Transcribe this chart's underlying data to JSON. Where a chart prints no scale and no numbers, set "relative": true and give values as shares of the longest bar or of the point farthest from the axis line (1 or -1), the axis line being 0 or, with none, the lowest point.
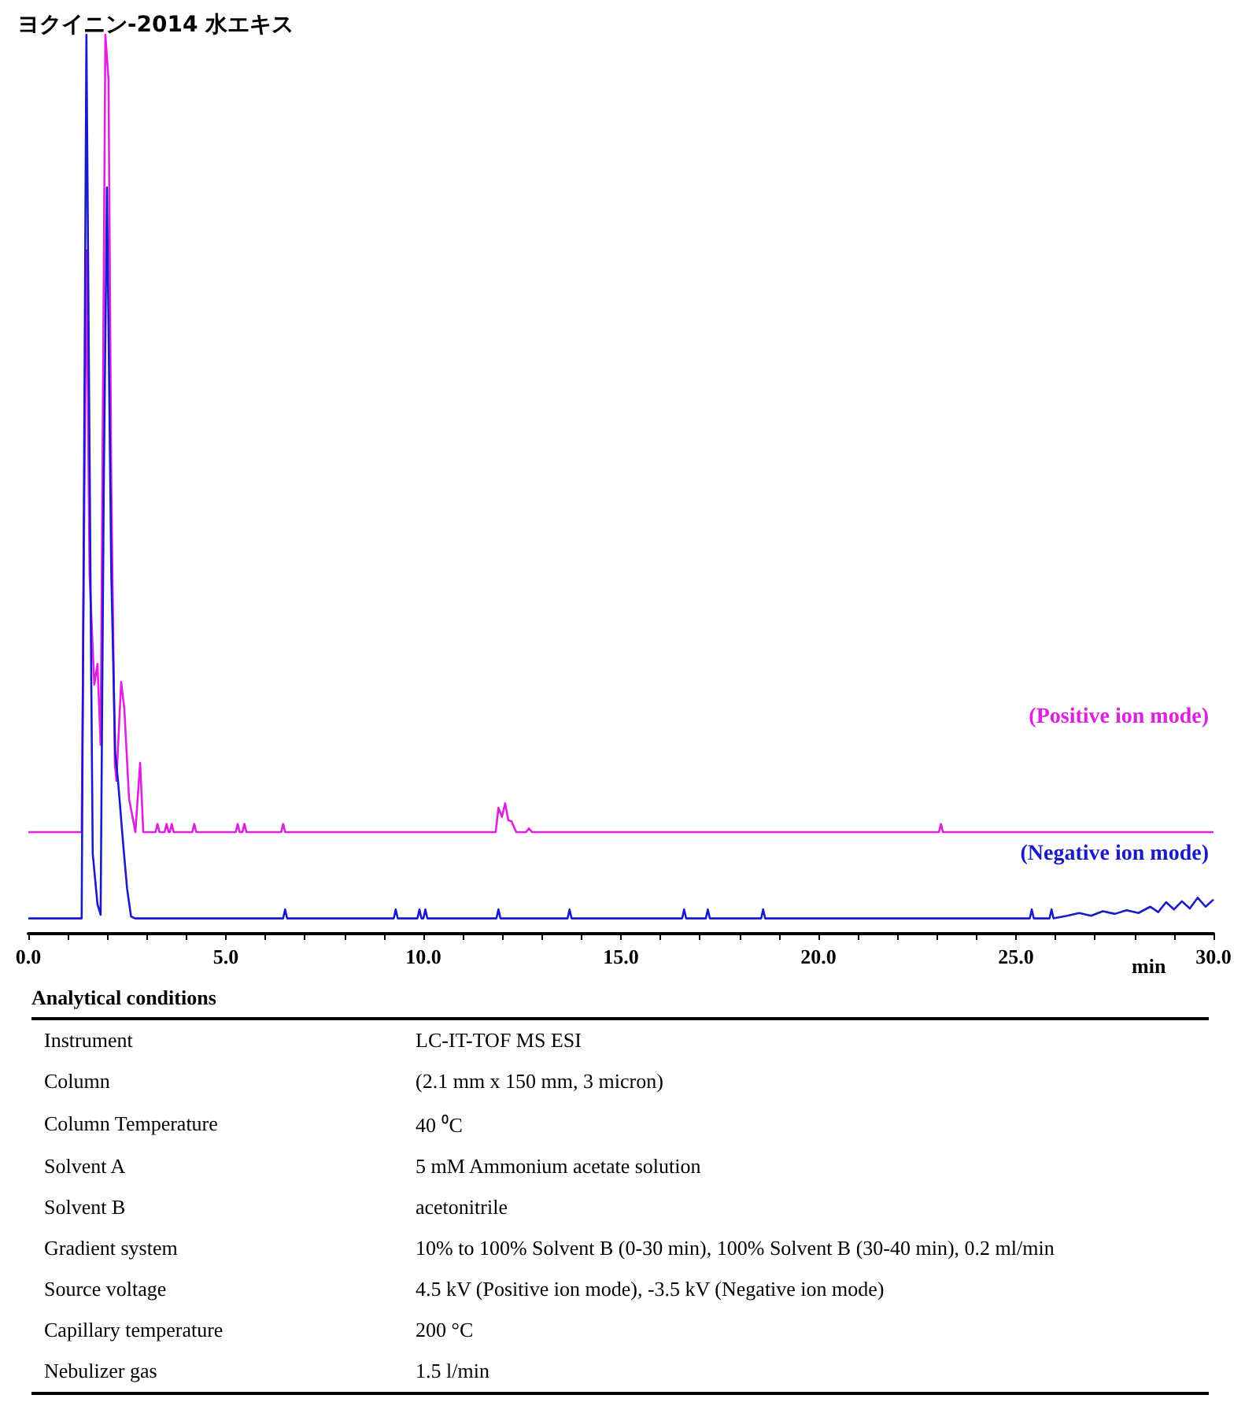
{
  "chart_data": {
    "type": "line",
    "title": "ヨクイニン-2014 水エキス",
    "xlabel": "min",
    "relative": true,
    "legend": false,
    "grid": false,
    "xlim": [
      0,
      30
    ],
    "xticks": [
      {
        "value": 0,
        "label": "0.0"
      },
      {
        "value": 1,
        "label": null
      },
      {
        "value": 2,
        "label": null
      },
      {
        "value": 3,
        "label": null
      },
      {
        "value": 4,
        "label": null
      },
      {
        "value": 5,
        "label": "5.0"
      },
      {
        "value": 6,
        "label": null
      },
      {
        "value": 7,
        "label": null
      },
      {
        "value": 8,
        "label": null
      },
      {
        "value": 9,
        "label": null
      },
      {
        "value": 10,
        "label": "10.0"
      },
      {
        "value": 11,
        "label": null
      },
      {
        "value": 12,
        "label": null
      },
      {
        "value": 13,
        "label": null
      },
      {
        "value": 14,
        "label": null
      },
      {
        "value": 15,
        "label": "15.0"
      },
      {
        "value": 16,
        "label": null
      },
      {
        "value": 17,
        "label": null
      },
      {
        "value": 18,
        "label": null
      },
      {
        "value": 19,
        "label": null
      },
      {
        "value": 20,
        "label": "20.0"
      },
      {
        "value": 21,
        "label": null
      },
      {
        "value": 22,
        "label": null
      },
      {
        "value": 23,
        "label": null
      },
      {
        "value": 24,
        "label": null
      },
      {
        "value": 25,
        "label": "25.0"
      },
      {
        "value": 26,
        "label": null
      },
      {
        "value": 27,
        "label": null
      },
      {
        "value": 28,
        "label": null
      },
      {
        "value": 29,
        "label": null
      },
      {
        "value": 30,
        "label": "30.0"
      }
    ],
    "series": [
      {
        "name": "(Positive ion mode)",
        "color": "#e020e0",
        "x": [
          0,
          1.35,
          1.47,
          1.55,
          1.67,
          1.75,
          1.83,
          1.95,
          2.03,
          2.1,
          2.19,
          2.23,
          2.35,
          2.43,
          2.55,
          2.71,
          2.83,
          2.91,
          3.22,
          3.27,
          3.32,
          3.45,
          3.5,
          3.55,
          3.58,
          3.63,
          3.68,
          4.15,
          4.2,
          4.25,
          5.25,
          5.3,
          5.35,
          5.42,
          5.47,
          5.52,
          6.4,
          6.45,
          6.5,
          11.83,
          11.9,
          11.99,
          12.07,
          12.15,
          12.23,
          12.35,
          12.6,
          12.67,
          12.75,
          23.05,
          23.1,
          23.15,
          30
        ],
        "values": [
          0.113,
          0.113,
          0.76,
          0.4,
          0.277,
          0.3,
          0.21,
          1.0,
          0.95,
          0.5,
          0.19,
          0.17,
          0.28,
          0.25,
          0.15,
          0.113,
          0.19,
          0.113,
          0.113,
          0.122,
          0.113,
          0.113,
          0.122,
          0.113,
          0.113,
          0.122,
          0.113,
          0.113,
          0.122,
          0.113,
          0.113,
          0.122,
          0.113,
          0.113,
          0.122,
          0.113,
          0.113,
          0.122,
          0.113,
          0.113,
          0.14,
          0.13,
          0.145,
          0.126,
          0.125,
          0.113,
          0.113,
          0.117,
          0.113,
          0.113,
          0.122,
          0.113,
          0.113
        ]
      },
      {
        "name": "(Negative ion mode)",
        "color": "#1a1acc",
        "x": [
          0,
          1.35,
          1.47,
          1.59,
          1.63,
          1.75,
          1.83,
          1.91,
          1.99,
          2.1,
          2.2,
          2.27,
          2.4,
          2.5,
          2.6,
          2.7,
          6.45,
          6.5,
          6.55,
          9.25,
          9.3,
          9.35,
          9.85,
          9.9,
          9.95,
          10.0,
          10.05,
          10.1,
          11.85,
          11.9,
          11.95,
          13.65,
          13.7,
          13.75,
          16.55,
          16.6,
          16.65,
          17.15,
          17.2,
          17.25,
          18.55,
          18.6,
          18.65,
          25.35,
          25.4,
          25.45,
          25.85,
          25.9,
          25.95,
          26.3,
          26.6,
          26.9,
          27.2,
          27.5,
          27.8,
          28.1,
          28.4,
          28.6,
          28.8,
          29.0,
          29.2,
          29.4,
          29.6,
          29.8,
          30.0
        ],
        "values": [
          0.017,
          0.017,
          1.0,
          0.3,
          0.089,
          0.033,
          0.021,
          0.5,
          0.83,
          0.4,
          0.2,
          0.17,
          0.1,
          0.05,
          0.019,
          0.017,
          0.017,
          0.027,
          0.017,
          0.017,
          0.027,
          0.017,
          0.017,
          0.027,
          0.017,
          0.017,
          0.027,
          0.017,
          0.017,
          0.027,
          0.017,
          0.017,
          0.027,
          0.017,
          0.017,
          0.027,
          0.017,
          0.017,
          0.027,
          0.017,
          0.017,
          0.027,
          0.017,
          0.017,
          0.027,
          0.017,
          0.017,
          0.027,
          0.017,
          0.02,
          0.023,
          0.02,
          0.025,
          0.022,
          0.026,
          0.023,
          0.03,
          0.024,
          0.035,
          0.027,
          0.036,
          0.028,
          0.04,
          0.03,
          0.038
        ]
      }
    ],
    "annotations": [
      "Analytical conditions",
      "Instrument",
      "LC-IT-TOF MS ESI",
      "Column",
      "(2.1 mm x 150 mm, 3 micron)",
      "Column Temperature",
      "40 ⁰C",
      "Solvent A",
      "5 mM Ammonium acetate solution",
      "Solvent B",
      "acetonitrile",
      "Gradient system",
      "10% to 100% Solvent B (0-30 min), 100% Solvent B (30-40 min), 0.2 ml/min",
      "Source voltage",
      "4.5 kV (Positive ion mode), -3.5 kV (Negative ion mode)",
      "Capillary temperature",
      "200 °C",
      "Nebulizer gas",
      "1.5 l/min"
    ]
  }
}
